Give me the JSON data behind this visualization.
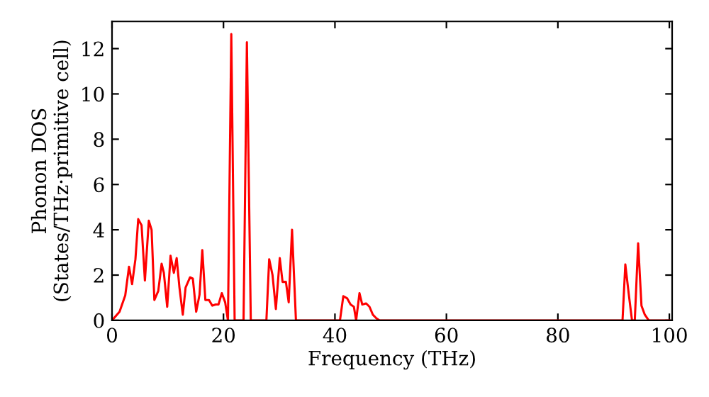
{
  "chart_data": {
    "type": "line",
    "xlabel": "Frequency (THz)",
    "ylabel": "Phonon DOS\n(States/THz·primitive cell)",
    "xlim": [
      0,
      100.5
    ],
    "ylim": [
      0,
      13.2
    ],
    "xticks": [
      0,
      20,
      40,
      60,
      80,
      100
    ],
    "yticks": [
      0,
      2,
      4,
      6,
      8,
      10,
      12
    ],
    "grid": false,
    "legend": false,
    "series": [
      {
        "color": "#ff0000",
        "x": [
          0,
          1.35,
          2.37,
          3.05,
          3.6,
          4.2,
          4.7,
          5.3,
          5.9,
          6.6,
          7.1,
          7.6,
          8.3,
          8.9,
          9.3,
          9.9,
          10.5,
          11.1,
          11.6,
          12.1,
          12.7,
          13.2,
          14.0,
          14.5,
          15.1,
          15.7,
          16.2,
          16.75,
          17.4,
          18.0,
          18.6,
          19.1,
          19.7,
          20.3,
          20.8,
          21.4,
          22.0,
          23.6,
          24.2,
          24.9,
          27.7,
          28.2,
          28.8,
          29.4,
          30.1,
          30.6,
          31.2,
          31.7,
          32.3,
          33.0,
          40.0,
          40.9,
          41.5,
          42.2,
          42.8,
          43.4,
          43.8,
          44.4,
          44.9,
          45.6,
          46.2,
          46.8,
          47.4,
          48.0,
          91.6,
          92.1,
          92.7,
          93.3,
          93.8,
          94.4,
          95.0,
          95.6,
          96.3,
          100
        ],
        "values": [
          0,
          0.38,
          1.1,
          2.37,
          1.6,
          2.7,
          4.47,
          4.2,
          1.76,
          4.4,
          4.0,
          0.9,
          1.3,
          2.5,
          2.1,
          0.6,
          2.85,
          2.1,
          2.75,
          1.45,
          0.25,
          1.45,
          1.9,
          1.85,
          0.38,
          1.13,
          3.1,
          0.9,
          0.9,
          0.65,
          0.7,
          0.7,
          1.2,
          0.8,
          0,
          12.64,
          0,
          0,
          12.28,
          0,
          0,
          2.7,
          2.0,
          0.5,
          2.75,
          1.7,
          1.7,
          0.8,
          4.0,
          0,
          0,
          0,
          1.07,
          0.97,
          0.7,
          0.6,
          0,
          1.2,
          0.7,
          0.75,
          0.6,
          0.25,
          0.1,
          0,
          0,
          2.47,
          1.2,
          0,
          0,
          3.4,
          0.65,
          0.25,
          0,
          0
        ]
      }
    ]
  }
}
